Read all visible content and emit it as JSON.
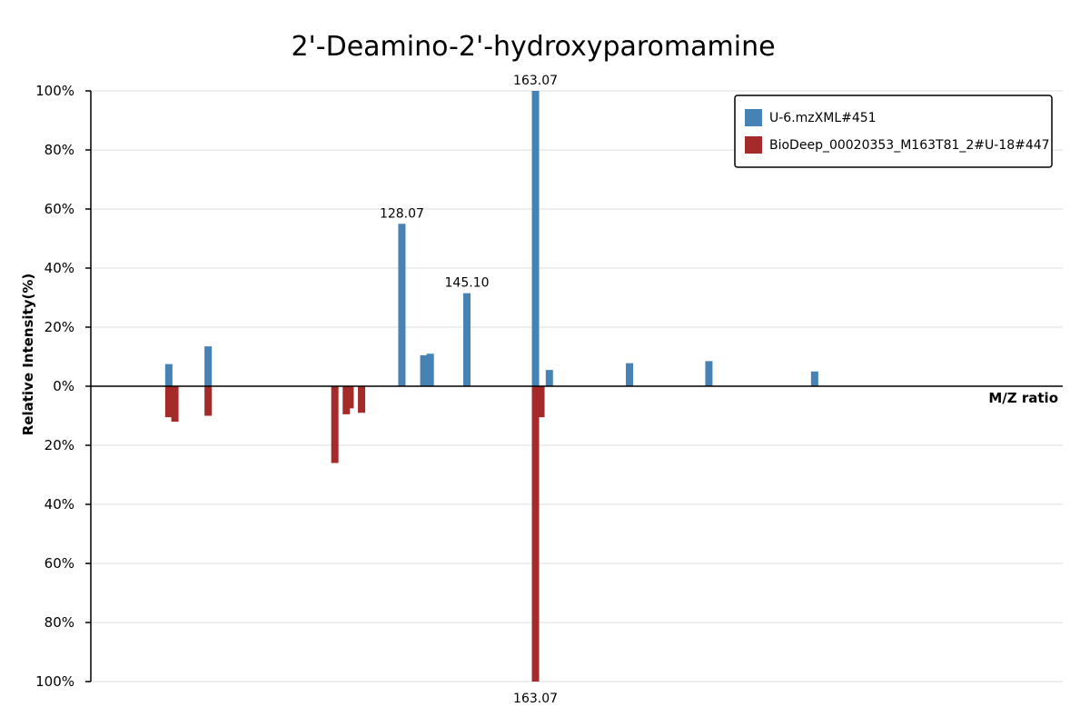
{
  "chart_data": {
    "type": "bar",
    "title": "2'-Deamino-2'-hydroxyparomamine",
    "ylabel": "Relative Intensity(%)",
    "xlabel": "M/Z ratio",
    "xlim": [
      48,
      236
    ],
    "ylim": [
      -100,
      100
    ],
    "yticks": [
      {
        "value": 100,
        "label": "100%"
      },
      {
        "value": 80,
        "label": "80%"
      },
      {
        "value": 60,
        "label": "60%"
      },
      {
        "value": 40,
        "label": "40%"
      },
      {
        "value": 20,
        "label": "20%"
      },
      {
        "value": 0,
        "label": "0%"
      },
      {
        "value": -20,
        "label": "20%"
      },
      {
        "value": -40,
        "label": "40%"
      },
      {
        "value": -60,
        "label": "60%"
      },
      {
        "value": -80,
        "label": "80%"
      },
      {
        "value": -100,
        "label": "100%"
      }
    ],
    "grid": true,
    "legend_position": "top-right",
    "series": [
      {
        "name": "U-6.mzXML#451",
        "color": "#4682b4",
        "direction": "up",
        "peaks": [
          {
            "mz": 67.0,
            "intensity": 7.5
          },
          {
            "mz": 77.3,
            "intensity": 13.5
          },
          {
            "mz": 128.07,
            "intensity": 55,
            "label": "128.07"
          },
          {
            "mz": 133.8,
            "intensity": 10.5
          },
          {
            "mz": 145.1,
            "intensity": 31.5,
            "label": "145.10"
          },
          {
            "mz": 135.5,
            "intensity": 11
          },
          {
            "mz": 163.07,
            "intensity": 100,
            "label": "163.07"
          },
          {
            "mz": 166.7,
            "intensity": 5.5
          },
          {
            "mz": 187.7,
            "intensity": 7.8
          },
          {
            "mz": 208.5,
            "intensity": 8.5
          },
          {
            "mz": 236.2,
            "intensity": 5
          }
        ]
      },
      {
        "name": "BioDeep_00020353_M163T81_2#U-18#447",
        "color": "#a52a2a",
        "direction": "down",
        "peaks": [
          {
            "mz": 67.0,
            "intensity": 10.5
          },
          {
            "mz": 68.6,
            "intensity": 12
          },
          {
            "mz": 77.3,
            "intensity": 10
          },
          {
            "mz": 110.5,
            "intensity": 26
          },
          {
            "mz": 113.5,
            "intensity": 9.5
          },
          {
            "mz": 114.5,
            "intensity": 7.5
          },
          {
            "mz": 117.5,
            "intensity": 9
          },
          {
            "mz": 163.07,
            "intensity": 100,
            "label": "163.07"
          },
          {
            "mz": 164.5,
            "intensity": 10.5
          }
        ]
      }
    ]
  }
}
